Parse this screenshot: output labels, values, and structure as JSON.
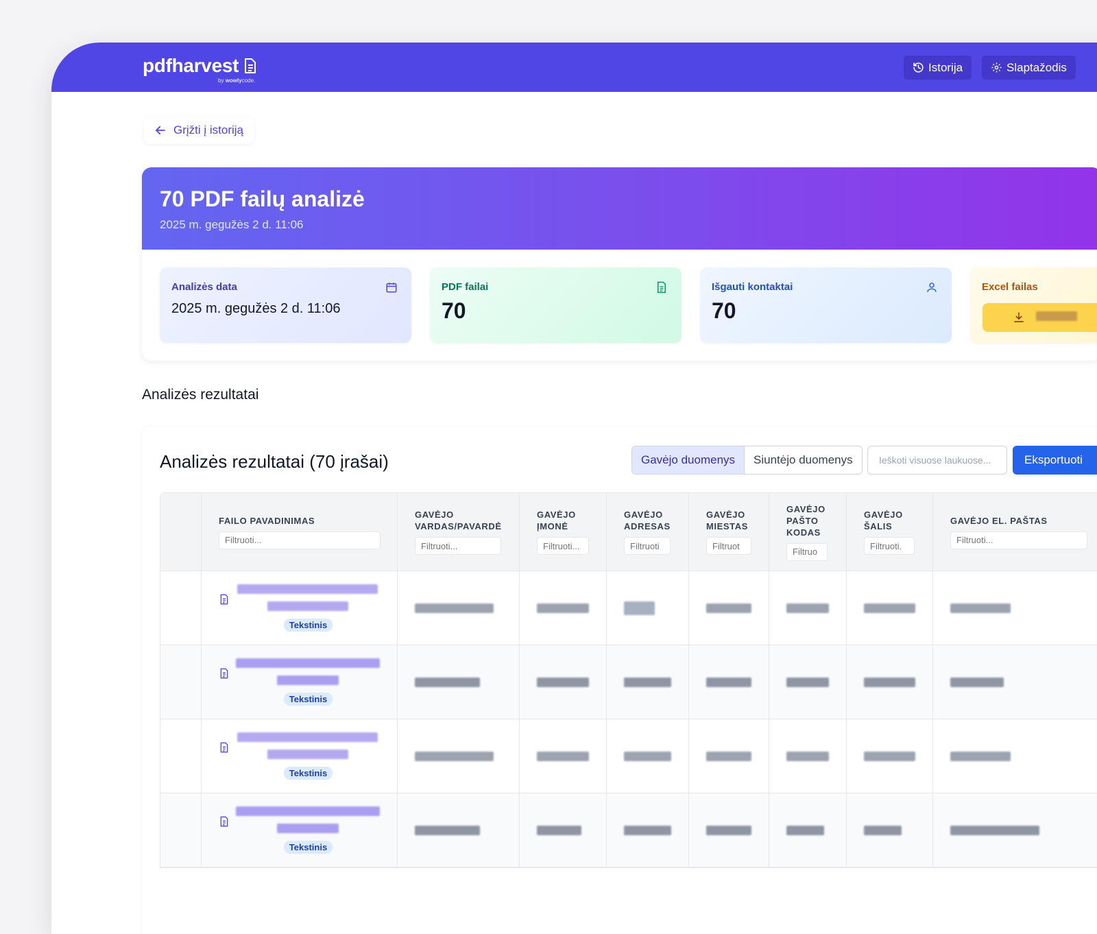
{
  "brand": {
    "name": "pdfharvest",
    "by_prefix": "by",
    "by_brand_bold": "wowly",
    "by_brand_rest": "code."
  },
  "nav": {
    "history_label": "Istorija",
    "password_label": "Slaptažodis"
  },
  "back_label": "Grįžti į istoriją",
  "hero": {
    "title": "70 PDF failų analizė",
    "subtitle": "2025 m. gegužės 2 d. 11:06"
  },
  "cards": {
    "date": {
      "label": "Analizės data",
      "value": "2025 m. gegužės 2 d. 11:06",
      "icon": "calendar-icon"
    },
    "pdf": {
      "label": "PDF failai",
      "value": "70",
      "icon": "document-icon"
    },
    "contacts": {
      "label": "Išgauti kontaktai",
      "value": "70",
      "icon": "user-icon"
    },
    "excel": {
      "label": "Excel failas",
      "icon": "download-icon"
    }
  },
  "section_title": "Analizės rezultatai",
  "results": {
    "title": "Analizės rezultatai (70 įrašai)",
    "tab_recipient": "Gavėjo duomenys",
    "tab_sender": "Siuntėjo duomenys",
    "search_placeholder": "Ieškoti visuose laukuose...",
    "export_label": "Eksportuoti"
  },
  "columns": [
    {
      "label": "FAILO PAVADINIMAS",
      "filter_placeholder": "Filtruoti..."
    },
    {
      "label": "GAVĖJO VARDAS/PAVARDĖ",
      "filter_placeholder": "Filtruoti..."
    },
    {
      "label": "GAVĖJO ĮMONĖ",
      "filter_placeholder": "Filtruoti..."
    },
    {
      "label": "GAVĖJO ADRESAS",
      "filter_placeholder": "Filtruoti"
    },
    {
      "label": "GAVĖJO MIESTAS",
      "filter_placeholder": "Filtruot"
    },
    {
      "label": "GAVĖJO PAŠTO KODAS",
      "filter_placeholder": "Filtruo"
    },
    {
      "label": "GAVĖJO ŠALIS",
      "filter_placeholder": "Filtruoti."
    },
    {
      "label": "GAVĖJO EL. PAŠTAS",
      "filter_placeholder": "Filtruoti..."
    }
  ],
  "rows": [
    {
      "badge": "Tekstinis"
    },
    {
      "badge": "Tekstinis"
    },
    {
      "badge": "Tekstinis"
    },
    {
      "badge": "Tekstinis"
    }
  ],
  "colors": {
    "primary": "#4f46e5",
    "export": "#2563eb"
  }
}
